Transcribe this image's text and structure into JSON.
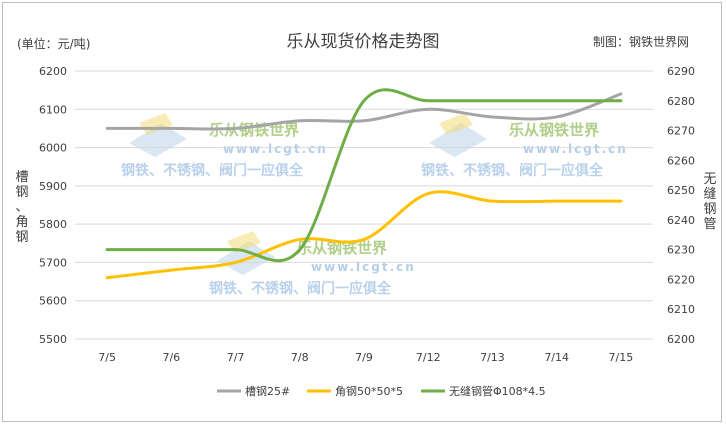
{
  "chart_data": {
    "type": "line",
    "title": "乐从现货价格走势图",
    "unit_label": "(单位：元/吨)",
    "credit": "制图：钢铁世界网",
    "ylabel_left": "槽钢、角钢",
    "ylabel_right": "无缝钢管",
    "categories": [
      "7/5",
      "7/6",
      "7/7",
      "7/8",
      "7/9",
      "7/12",
      "7/13",
      "7/14",
      "7/15"
    ],
    "y_left": {
      "min": 5500,
      "max": 6200,
      "step": 100
    },
    "y_right": {
      "min": 6200,
      "max": 6290,
      "step": 10
    },
    "legend_position": "bottom",
    "grid": "horizontal",
    "series": [
      {
        "name": "槽钢25#",
        "axis": "left",
        "color": "#a5a5a5",
        "values": [
          6050,
          6050,
          6050,
          6070,
          6070,
          6100,
          6080,
          6080,
          6140
        ]
      },
      {
        "name": "角钢50*50*5",
        "axis": "left",
        "color": "#ffc000",
        "values": [
          5660,
          5680,
          5700,
          5760,
          5760,
          5880,
          5860,
          5860,
          5860
        ]
      },
      {
        "name": "无缝钢管Φ108*4.5",
        "axis": "right",
        "color": "#70ad47",
        "values": [
          6230,
          6230,
          6230,
          6230,
          6280,
          6280,
          6280,
          6280,
          6280
        ]
      }
    ],
    "watermark": {
      "brand": "乐从钢铁世界",
      "url": "www.lcgt.cn",
      "slogan": "钢铁、不锈钢、阀门一应俱全"
    }
  }
}
